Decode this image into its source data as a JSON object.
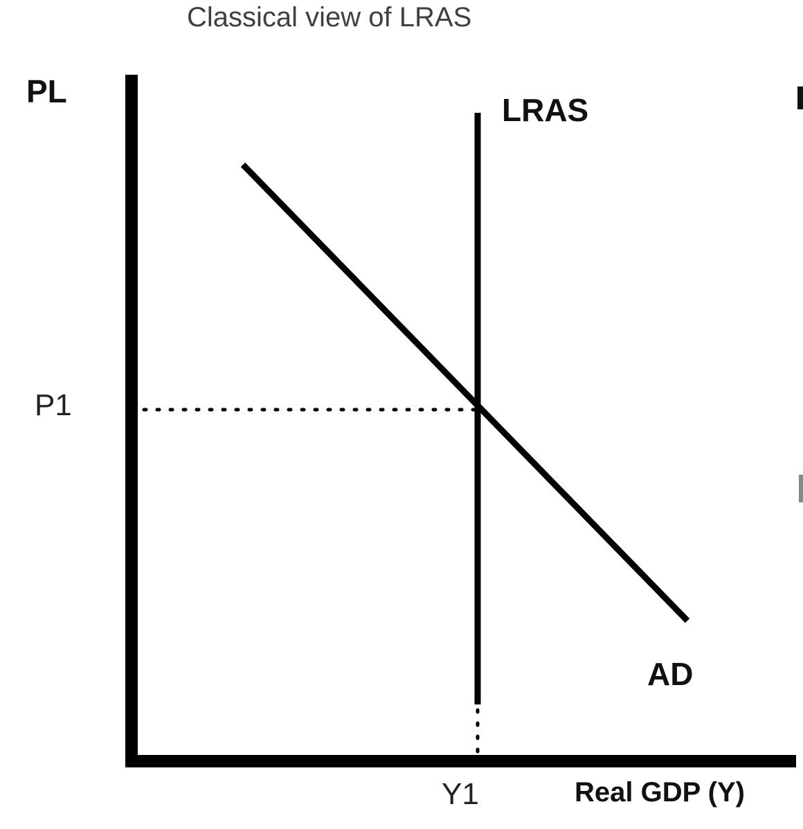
{
  "diagram": {
    "title": "Classical view of LRAS",
    "y_axis_label": "PL",
    "x_axis_label": "Real GDP (Y)",
    "equilibrium_price_label": "P1",
    "equilibrium_output_label": "Y1",
    "lras_label": "LRAS",
    "ad_label": "AD",
    "colors": {
      "line": "#000000",
      "title": "#404040",
      "background": "#ffffff"
    }
  }
}
